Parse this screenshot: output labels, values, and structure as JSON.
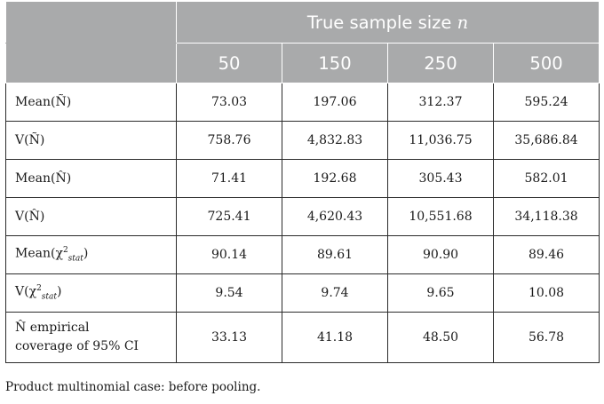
{
  "table": {
    "header": {
      "group_title": "True sample size",
      "group_var": "n",
      "columns": [
        "50",
        "150",
        "250",
        "500"
      ]
    },
    "rows": [
      {
        "label": "Mean(Ñ)",
        "values": [
          "73.03",
          "197.06",
          "312.37",
          "595.24"
        ]
      },
      {
        "label": "V(Ñ)",
        "values": [
          "758.76",
          "4,832.83",
          "11,036.75",
          "35,686.84"
        ]
      },
      {
        "label": "Mean(N̂)",
        "values": [
          "71.41",
          "192.68",
          "305.43",
          "582.01"
        ]
      },
      {
        "label": "V(N̂)",
        "values": [
          "725.41",
          "4,620.43",
          "10,551.68",
          "34,118.38"
        ]
      },
      {
        "label_prefix": "Mean(χ",
        "label_sup": "2",
        "label_sub": "stat",
        "label_suffix": ")",
        "values": [
          "90.14",
          "89.61",
          "90.90",
          "89.46"
        ]
      },
      {
        "label_prefix": "V(χ",
        "label_sup": "2",
        "label_sub": "stat",
        "label_suffix": ")",
        "values": [
          "9.54",
          "9.74",
          "9.65",
          "10.08"
        ]
      },
      {
        "label_line1": "N̂ empirical",
        "label_line2": "coverage of 95% CI",
        "values": [
          "33.13",
          "41.18",
          "48.50",
          "56.78"
        ]
      }
    ]
  },
  "footnote": "Product multinomial case: before pooling."
}
